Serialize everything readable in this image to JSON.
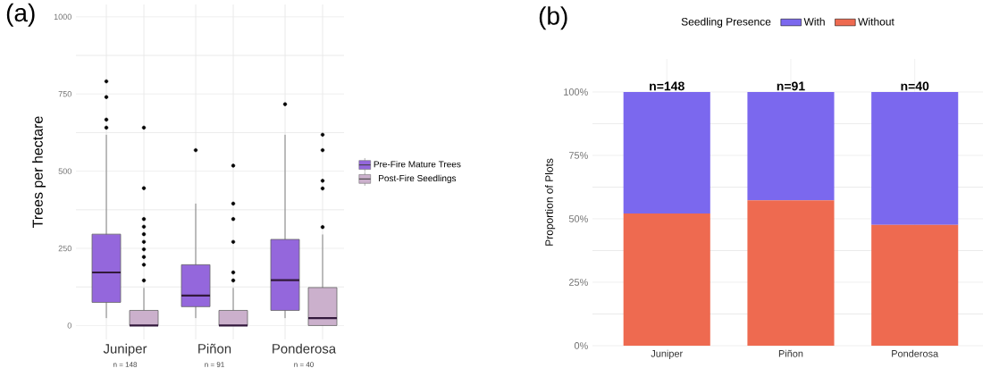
{
  "chart_data": [
    {
      "type": "box",
      "title": "(a)",
      "ylabel": "Trees per hectare",
      "categories": [
        "Juniper",
        "Piñon",
        "Ponderosa"
      ],
      "annotations": [
        "n = 148",
        "n = 91",
        "n = 40"
      ],
      "ylim": [
        -45,
        1040
      ],
      "yticks": [
        0,
        250,
        500,
        750,
        1000
      ],
      "grid": true,
      "legend": "right",
      "marker": "circle",
      "series": [
        {
          "name": "Pre-Fire Mature Trees",
          "color": "#9467dc",
          "boxes": [
            {
              "low": 24,
              "q1": 75,
              "median": 172,
              "q3": 296,
              "high": 618,
              "outliers": [
                641,
                667,
                740,
                791
              ]
            },
            {
              "low": 24,
              "q1": 61,
              "median": 97,
              "q3": 197,
              "high": 395,
              "outliers": [
                568
              ]
            },
            {
              "low": 24,
              "q1": 49,
              "median": 147,
              "q3": 279,
              "high": 618,
              "outliers": [
                717
              ]
            }
          ]
        },
        {
          "name": "Post-Fire Seedlings",
          "color": "#cbb0cc",
          "boxes": [
            {
              "low": 0,
              "q1": 0,
              "median": 0,
              "q3": 49,
              "high": 122,
              "outliers": [
                146,
                197,
                222,
                247,
                271,
                296,
                320,
                345,
                445,
                641
              ]
            },
            {
              "low": 0,
              "q1": 0,
              "median": 0,
              "q3": 49,
              "high": 122,
              "outliers": [
                146,
                172,
                271,
                345,
                395,
                518
              ]
            },
            {
              "low": 0,
              "q1": 0,
              "median": 24,
              "q3": 123,
              "high": 295,
              "outliers": [
                319,
                444,
                469,
                568,
                618
              ]
            }
          ]
        }
      ]
    },
    {
      "type": "bar",
      "title": "(b)",
      "ylabel": "Proportion of Plots",
      "legend_title": "Seedling Presence",
      "categories": [
        "Juniper",
        "Piñon",
        "Ponderosa"
      ],
      "stacked": true,
      "ylim": [
        0,
        113
      ],
      "yticks": [
        {
          "value": 0,
          "label": "0%"
        },
        {
          "value": 25,
          "label": "25%"
        },
        {
          "value": 50,
          "label": "50%"
        },
        {
          "value": 75,
          "label": "75%"
        },
        {
          "value": 100,
          "label": "100%"
        }
      ],
      "grid": true,
      "legend": "top",
      "annotations": [
        {
          "text": "n=148",
          "x": "Juniper",
          "y": 100
        },
        {
          "text": "n=91",
          "x": "Piñon",
          "y": 100
        },
        {
          "text": "n=40",
          "x": "Ponderosa",
          "y": 100
        }
      ],
      "series": [
        {
          "name": "Without",
          "color": "#ee6a50",
          "values": [
            52.1,
            57.3,
            47.6
          ]
        },
        {
          "name": "With",
          "color": "#7b68ee",
          "values": [
            47.9,
            42.7,
            52.4
          ]
        }
      ]
    }
  ]
}
